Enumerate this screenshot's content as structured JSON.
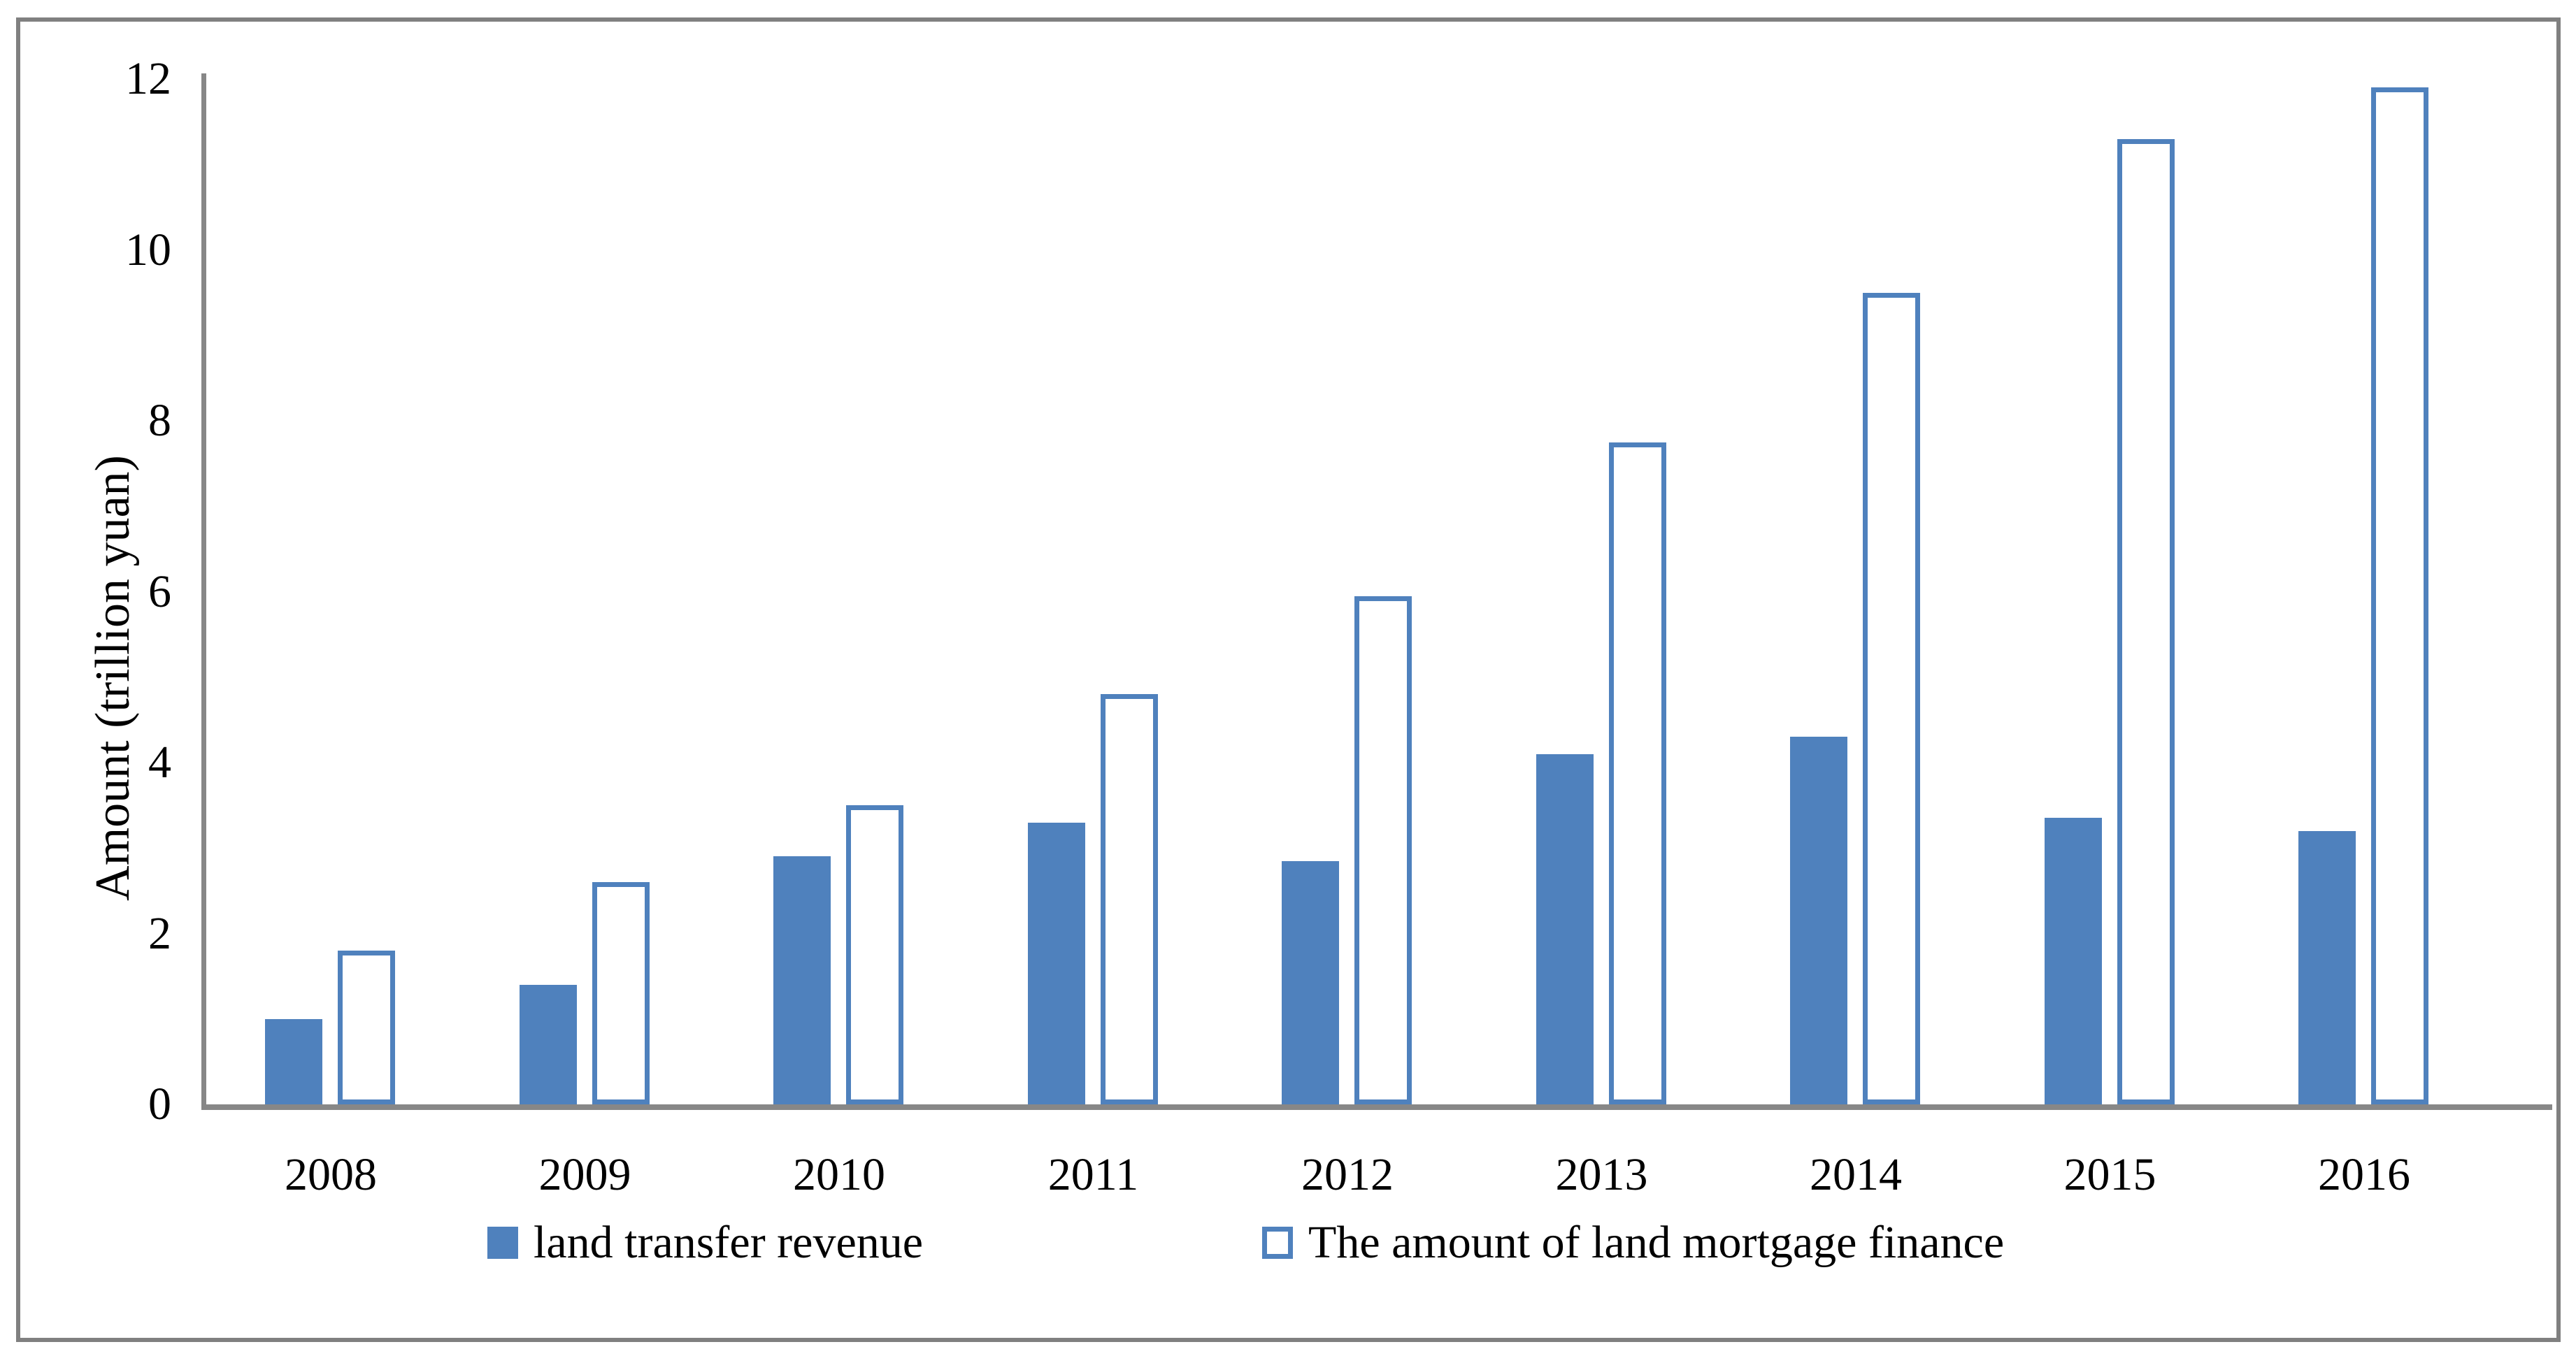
{
  "figure": {
    "background_color": "#ffffff",
    "border_color": "#808080",
    "axis_color": "#878787"
  },
  "chart_data": {
    "type": "bar",
    "title": "",
    "xlabel": "",
    "ylabel": "Amount (trillion yuan)",
    "categories": [
      "2008",
      "2009",
      "2010",
      "2011",
      "2012",
      "2013",
      "2014",
      "2015",
      "2016"
    ],
    "series": [
      {
        "name": "land transfer revenue",
        "style": "solid",
        "color": "#4F81BD",
        "values": [
          1.0,
          1.4,
          2.9,
          3.3,
          2.85,
          4.1,
          4.3,
          3.35,
          3.2
        ]
      },
      {
        "name": "The amount of land mortgage finance",
        "style": "outline",
        "color": "#4F81BD",
        "fill": "#FFFFFF",
        "values": [
          1.8,
          2.6,
          3.5,
          4.8,
          5.95,
          7.75,
          9.5,
          11.3,
          11.9
        ]
      }
    ],
    "ylim": [
      0,
      12
    ],
    "yticks": [
      0,
      2,
      4,
      6,
      8,
      10,
      12
    ],
    "grid": false,
    "legend_position": "bottom"
  }
}
